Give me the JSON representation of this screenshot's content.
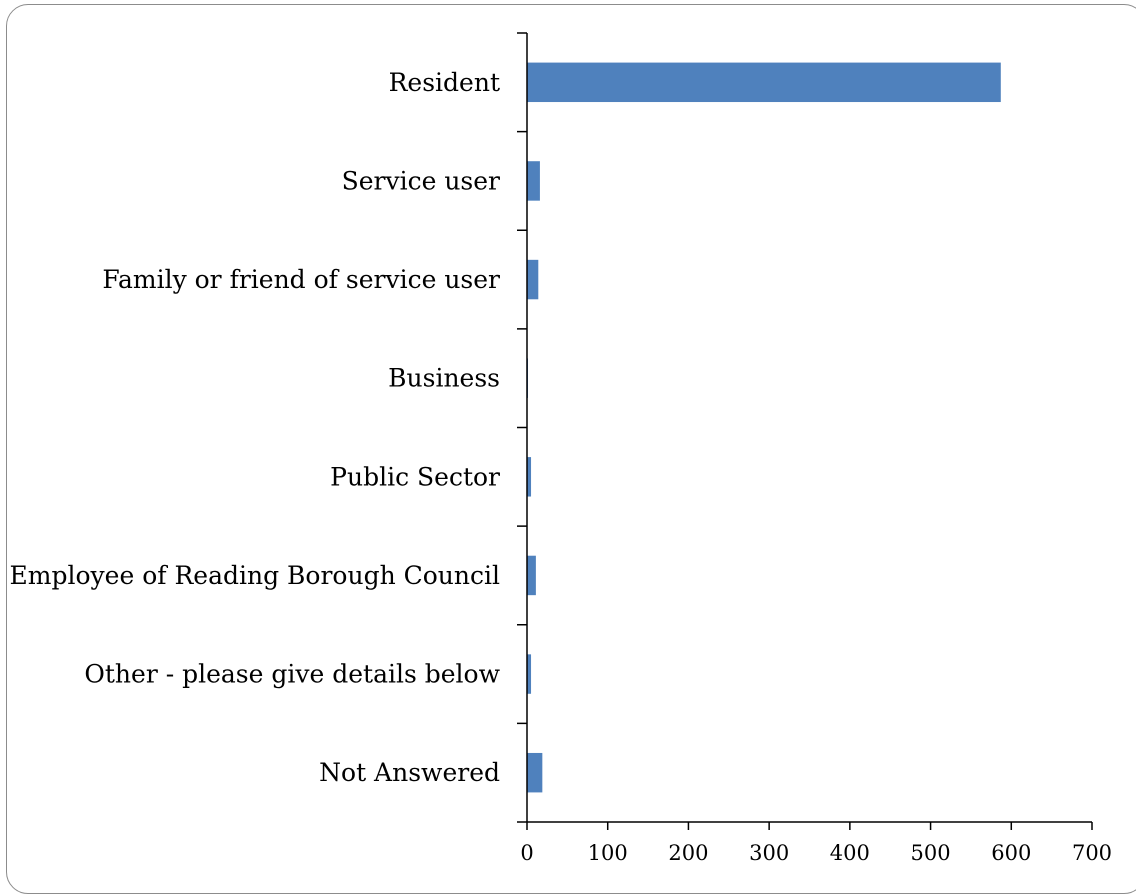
{
  "chart_data": {
    "type": "bar",
    "orientation": "horizontal",
    "categories": [
      "Resident",
      "Service user",
      "Family or friend of service user",
      "Business",
      "Public Sector",
      "Employee of Reading Borough Council",
      "Other - please give details below",
      "Not Answered"
    ],
    "values": [
      587,
      16,
      14,
      1,
      5,
      11,
      5,
      19
    ],
    "xlim": [
      0,
      700
    ],
    "xticks": [
      0,
      100,
      200,
      300,
      400,
      500,
      600,
      700
    ],
    "title": "",
    "xlabel": "",
    "ylabel": "",
    "grid": false,
    "bar_color": "#4F81BD",
    "axis_color": "#000000",
    "frame_color": "#8C8C8C"
  }
}
